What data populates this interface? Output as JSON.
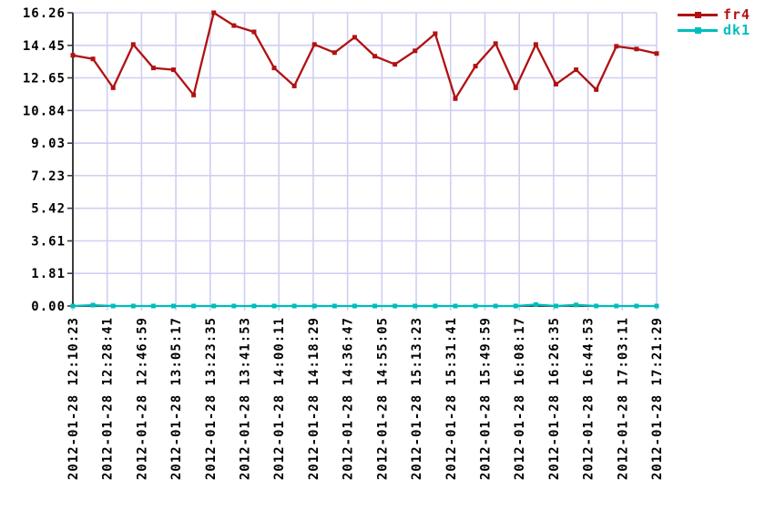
{
  "chart_data": {
    "type": "line",
    "title": "",
    "xlabel": "",
    "ylabel": "",
    "ylim": [
      0,
      16.26
    ],
    "grid": true,
    "legend_position": "top-right",
    "y_tick_labels": [
      "0.00",
      "1.81",
      "3.61",
      "5.42",
      "7.23",
      "9.03",
      "10.84",
      "12.65",
      "14.45",
      "16.26"
    ],
    "x_tick_labels": [
      "2012-01-28 12:10:23",
      "2012-01-28 12:28:41",
      "2012-01-28 12:46:59",
      "2012-01-28 13:05:17",
      "2012-01-28 13:23:35",
      "2012-01-28 13:41:53",
      "2012-01-28 14:00:11",
      "2012-01-28 14:18:29",
      "2012-01-28 14:36:47",
      "2012-01-28 14:55:05",
      "2012-01-28 15:13:23",
      "2012-01-28 15:31:41",
      "2012-01-28 15:49:59",
      "2012-01-28 16:08:17",
      "2012-01-28 16:26:35",
      "2012-01-28 16:44:53",
      "2012-01-28 17:03:11",
      "2012-01-28 17:21:29"
    ],
    "series": [
      {
        "name": "fr4",
        "color": "#b01212",
        "values": [
          13.9,
          13.7,
          12.1,
          14.5,
          13.2,
          13.1,
          11.7,
          16.26,
          15.55,
          15.2,
          13.2,
          12.2,
          14.5,
          14.05,
          14.9,
          13.85,
          13.4,
          14.15,
          15.1,
          11.5,
          13.3,
          14.55,
          12.1,
          14.5,
          12.3,
          13.1,
          12.0,
          14.4,
          14.25,
          14.0
        ]
      },
      {
        "name": "dk1",
        "color": "#00bdbd",
        "values": [
          0.0,
          0.05,
          0.0,
          0.0,
          0.0,
          0.0,
          0.0,
          0.0,
          0.0,
          0.0,
          0.0,
          0.0,
          0.0,
          0.0,
          0.0,
          0.0,
          0.0,
          0.0,
          0.0,
          0.0,
          0.0,
          0.0,
          0.0,
          0.08,
          0.0,
          0.06,
          0.0,
          0.0,
          0.0,
          0.0
        ]
      }
    ]
  },
  "colors": {
    "background": "#ffffff",
    "grid": "#cfcff2",
    "axis": "#3c3c3c",
    "text": "#000000"
  }
}
